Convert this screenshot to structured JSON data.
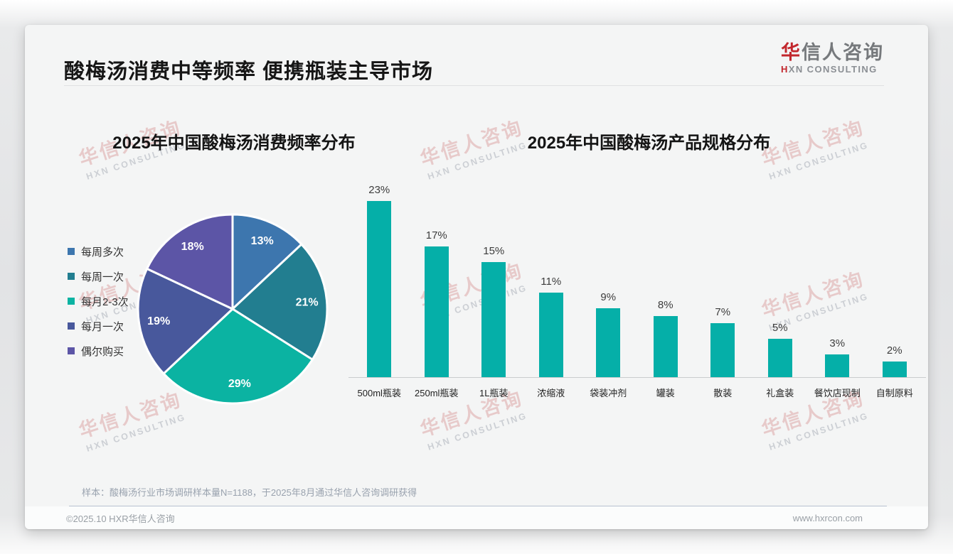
{
  "page": {
    "title": "酸梅汤消费中等频率 便携瓶装主导市场",
    "logo": {
      "zh_red": "华",
      "zh_rest": "信人咨询",
      "en_first": "H",
      "en_rest": "XN CONSULTING"
    },
    "watermark": {
      "zh": "华信人咨询",
      "en": "HXN CONSULTING"
    },
    "footnote": "样本：酸梅汤行业市场调研样本量N=1188，于2025年8月通过华信人咨询调研获得",
    "footer": {
      "copyright": "©2025.10 HXR华信人咨询",
      "website": "www.hxrcon.com"
    }
  },
  "chart_data": [
    {
      "type": "pie",
      "title": "2025年中国酸梅汤消费频率分布",
      "categories": [
        "每周多次",
        "每周一次",
        "每月2-3次",
        "每月一次",
        "偶尔购买"
      ],
      "values": [
        13,
        21,
        29,
        19,
        18
      ],
      "labels": [
        "13%",
        "21%",
        "29%",
        "19%",
        "18%"
      ],
      "unit": "%",
      "colors": [
        "#3D76AE",
        "#227E90",
        "#0BB3A2",
        "#48589C",
        "#5C55A6"
      ],
      "start_angle_deg": 0,
      "direction": "clockwise",
      "legend_position": "left",
      "slice_border_color": "#ffffff",
      "label_color": "#ffffff"
    },
    {
      "type": "bar",
      "title": "2025年中国酸梅汤产品规格分布",
      "categories": [
        "500ml瓶装",
        "250ml瓶装",
        "1L瓶装",
        "浓缩液",
        "袋装冲剂",
        "罐装",
        "散装",
        "礼盒装",
        "餐饮店现制",
        "自制原料"
      ],
      "values": [
        23,
        17,
        15,
        11,
        9,
        8,
        7,
        5,
        3,
        2
      ],
      "labels": [
        "23%",
        "17%",
        "15%",
        "11%",
        "9%",
        "8%",
        "7%",
        "5%",
        "3%",
        "2%"
      ],
      "unit": "%",
      "bar_color": "#05AFA8",
      "ylim": [
        0,
        25
      ],
      "grid": false,
      "legend_position": "none"
    }
  ]
}
